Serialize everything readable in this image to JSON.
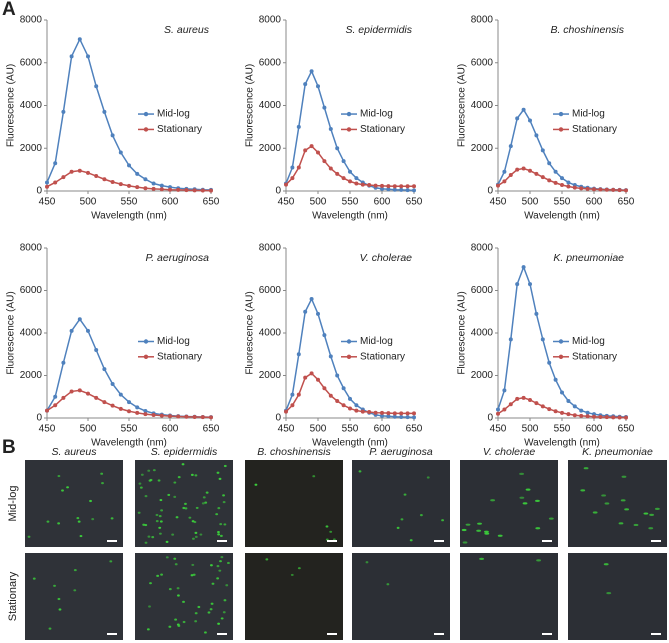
{
  "panel_labels": [
    "A",
    "B"
  ],
  "chart_data": [
    {
      "type": "line",
      "title": "S. aureus",
      "x_label": "Wavelength (nm)",
      "y_label": "Fluorescence (AU)",
      "x": [
        450,
        460,
        470,
        480,
        490,
        500,
        510,
        520,
        530,
        540,
        550,
        560,
        570,
        580,
        590,
        600,
        610,
        620,
        630,
        640,
        650
      ],
      "xlim": [
        450,
        650
      ],
      "xticks": [
        450,
        500,
        550,
        600,
        650
      ],
      "ylim": [
        0,
        8000
      ],
      "yticks": [
        0,
        2000,
        4000,
        6000,
        8000
      ],
      "legend": "right",
      "series": [
        {
          "name": "Mid-log",
          "color": "#4f81bd",
          "values": [
            400,
            1300,
            3700,
            6300,
            7100,
            6300,
            4900,
            3700,
            2600,
            1800,
            1200,
            800,
            550,
            350,
            250,
            180,
            130,
            100,
            80,
            60,
            50
          ]
        },
        {
          "name": "Stationary",
          "color": "#c0504d",
          "values": [
            200,
            400,
            650,
            900,
            950,
            850,
            700,
            550,
            420,
            320,
            240,
            180,
            130,
            100,
            80,
            60,
            50,
            40,
            30,
            25,
            20
          ]
        }
      ]
    },
    {
      "type": "line",
      "title": "S. epidermidis",
      "x_label": "Wavelength (nm)",
      "y_label": "Fluorescence (AU)",
      "x": [
        450,
        460,
        470,
        480,
        490,
        500,
        510,
        520,
        530,
        540,
        550,
        560,
        570,
        580,
        590,
        600,
        610,
        620,
        630,
        640,
        650
      ],
      "xlim": [
        450,
        650
      ],
      "xticks": [
        450,
        500,
        550,
        600,
        650
      ],
      "ylim": [
        0,
        8000
      ],
      "yticks": [
        0,
        2000,
        4000,
        6000,
        8000
      ],
      "legend": "right",
      "series": [
        {
          "name": "Mid-log",
          "color": "#4f81bd",
          "values": [
            350,
            1100,
            3000,
            5000,
            5600,
            4900,
            3900,
            2900,
            2000,
            1400,
            900,
            600,
            400,
            250,
            150,
            100,
            80,
            60,
            50,
            40,
            30
          ]
        },
        {
          "name": "Stationary",
          "color": "#c0504d",
          "values": [
            300,
            600,
            1100,
            1900,
            2100,
            1800,
            1400,
            1050,
            800,
            600,
            450,
            350,
            300,
            280,
            250,
            240,
            230,
            220,
            220,
            220,
            220
          ]
        }
      ]
    },
    {
      "type": "line",
      "title": "B. choshinensis",
      "x_label": "Wavelength (nm)",
      "y_label": "Fluorescence (AU)",
      "x": [
        450,
        460,
        470,
        480,
        490,
        500,
        510,
        520,
        530,
        540,
        550,
        560,
        570,
        580,
        590,
        600,
        610,
        620,
        630,
        640,
        650
      ],
      "xlim": [
        450,
        650
      ],
      "xticks": [
        450,
        500,
        550,
        600,
        650
      ],
      "ylim": [
        0,
        8000
      ],
      "yticks": [
        0,
        2000,
        4000,
        6000,
        8000
      ],
      "legend": "right",
      "series": [
        {
          "name": "Mid-log",
          "color": "#4f81bd",
          "values": [
            300,
            900,
            2100,
            3400,
            3800,
            3300,
            2600,
            1900,
            1300,
            900,
            600,
            400,
            280,
            200,
            150,
            110,
            90,
            70,
            60,
            50,
            40
          ]
        },
        {
          "name": "Stationary",
          "color": "#c0504d",
          "values": [
            250,
            450,
            750,
            1000,
            1050,
            950,
            800,
            650,
            500,
            380,
            280,
            210,
            160,
            120,
            100,
            80,
            70,
            60,
            50,
            40,
            30
          ]
        }
      ]
    },
    {
      "type": "line",
      "title": "P. aeruginosa",
      "x_label": "Wavelength (nm)",
      "y_label": "Fluorescence (AU)",
      "x": [
        450,
        460,
        470,
        480,
        490,
        500,
        510,
        520,
        530,
        540,
        550,
        560,
        570,
        580,
        590,
        600,
        610,
        620,
        630,
        640,
        650
      ],
      "xlim": [
        450,
        650
      ],
      "xticks": [
        450,
        500,
        550,
        600,
        650
      ],
      "ylim": [
        0,
        8000
      ],
      "yticks": [
        0,
        2000,
        4000,
        6000,
        8000
      ],
      "legend": "right",
      "series": [
        {
          "name": "Mid-log",
          "color": "#4f81bd",
          "values": [
            350,
            1000,
            2600,
            4100,
            4650,
            4100,
            3200,
            2300,
            1600,
            1100,
            750,
            500,
            330,
            220,
            160,
            120,
            90,
            70,
            60,
            50,
            40
          ]
        },
        {
          "name": "Stationary",
          "color": "#c0504d",
          "values": [
            350,
            600,
            950,
            1250,
            1300,
            1150,
            950,
            750,
            580,
            430,
            320,
            240,
            180,
            140,
            110,
            90,
            70,
            60,
            50,
            40,
            30
          ]
        }
      ]
    },
    {
      "type": "line",
      "title": "V. cholerae",
      "x_label": "Wavelength (nm)",
      "y_label": "Fluorescence (AU)",
      "x": [
        450,
        460,
        470,
        480,
        490,
        500,
        510,
        520,
        530,
        540,
        550,
        560,
        570,
        580,
        590,
        600,
        610,
        620,
        630,
        640,
        650
      ],
      "xlim": [
        450,
        650
      ],
      "xticks": [
        450,
        500,
        550,
        600,
        650
      ],
      "ylim": [
        0,
        8000
      ],
      "yticks": [
        0,
        2000,
        4000,
        6000,
        8000
      ],
      "legend": "right",
      "series": [
        {
          "name": "Mid-log",
          "color": "#4f81bd",
          "values": [
            350,
            1100,
            3000,
            5000,
            5600,
            4900,
            3900,
            2900,
            2000,
            1400,
            900,
            600,
            400,
            250,
            150,
            100,
            80,
            60,
            50,
            40,
            30
          ]
        },
        {
          "name": "Stationary",
          "color": "#c0504d",
          "values": [
            300,
            600,
            1100,
            1900,
            2100,
            1800,
            1400,
            1050,
            800,
            600,
            450,
            350,
            300,
            280,
            250,
            240,
            230,
            220,
            220,
            220,
            220
          ]
        }
      ]
    },
    {
      "type": "line",
      "title": "K. pneumoniae",
      "x_label": "Wavelength (nm)",
      "y_label": "Fluorescence (AU)",
      "x": [
        450,
        460,
        470,
        480,
        490,
        500,
        510,
        520,
        530,
        540,
        550,
        560,
        570,
        580,
        590,
        600,
        610,
        620,
        630,
        640,
        650
      ],
      "xlim": [
        450,
        650
      ],
      "xticks": [
        450,
        500,
        550,
        600,
        650
      ],
      "ylim": [
        0,
        8000
      ],
      "yticks": [
        0,
        2000,
        4000,
        6000,
        8000
      ],
      "legend": "right",
      "series": [
        {
          "name": "Mid-log",
          "color": "#4f81bd",
          "values": [
            400,
            1300,
            3700,
            6300,
            7100,
            6300,
            4900,
            3700,
            2600,
            1800,
            1200,
            800,
            550,
            350,
            250,
            180,
            130,
            100,
            80,
            60,
            50
          ]
        },
        {
          "name": "Stationary",
          "color": "#c0504d",
          "values": [
            200,
            400,
            650,
            900,
            950,
            850,
            700,
            550,
            420,
            320,
            240,
            180,
            130,
            100,
            80,
            60,
            50,
            40,
            30,
            25,
            20
          ]
        }
      ]
    }
  ],
  "image_grid": {
    "columns": [
      "S. aureus",
      "S. epidermidis",
      "B. choshinensis",
      "P. aeruginosa",
      "V. cholerae",
      "K. pneumoniae"
    ],
    "rows": [
      "Mid-log",
      "Stationary"
    ]
  }
}
